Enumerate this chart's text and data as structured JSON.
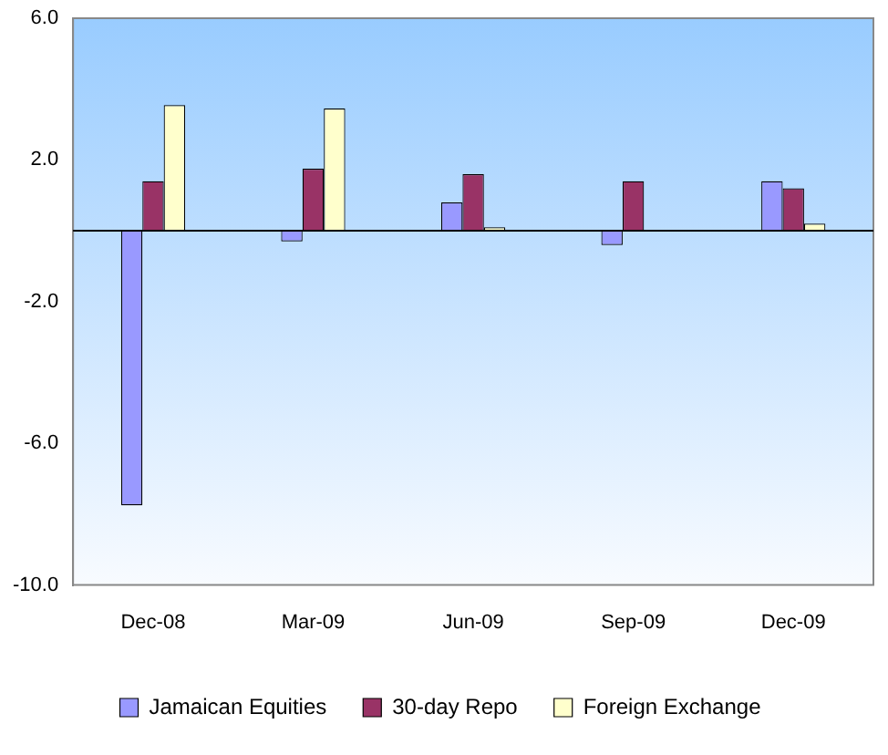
{
  "chart_data": {
    "type": "bar",
    "categories": [
      "Dec-08",
      "Mar-09",
      "Jun-09",
      "Sep-09",
      "Dec-09"
    ],
    "series": [
      {
        "name": "Jamaican Equities",
        "color": "#9999ff",
        "values": [
          -7.75,
          -0.3,
          0.8,
          -0.4,
          1.4
        ]
      },
      {
        "name": "30-day Repo",
        "color": "#993366",
        "values": [
          1.4,
          1.75,
          1.6,
          1.4,
          1.2
        ]
      },
      {
        "name": "Foreign Exchange",
        "color": "#ffffcc",
        "values": [
          3.55,
          3.45,
          0.1,
          null,
          0.2
        ]
      }
    ],
    "ylim": [
      -10,
      6
    ],
    "yticks": [
      {
        "value": 6,
        "label": "6.0"
      },
      {
        "value": 2,
        "label": "2.0"
      },
      {
        "value": -2,
        "label": "-2.0"
      },
      {
        "value": -6,
        "label": "-6.0"
      },
      {
        "value": -10,
        "label": "-10.0"
      }
    ],
    "grid": false,
    "legend": "bottom"
  }
}
